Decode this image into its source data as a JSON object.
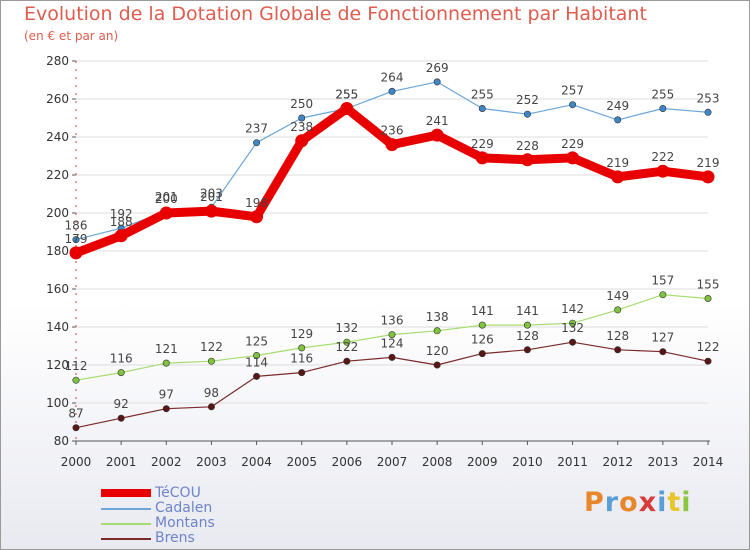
{
  "title": "Evolution de la Dotation Globale de Fonctionnement par Habitant",
  "subtitle": "(en € et par an)",
  "logo_text": "Proxiti",
  "colors": {
    "title": "#df5c4e",
    "axis": "#555555",
    "gridline": "#dddddd",
    "value_label": "#444444",
    "legend_text": "#6e84c8"
  },
  "chart_data": {
    "type": "line",
    "title": "Evolution de la Dotation Globale de Fonctionnement par Habitant",
    "subtitle": "(en € et par an)",
    "xlabel": "",
    "ylabel": "",
    "x": [
      "2000",
      "2001",
      "2002",
      "2003",
      "2004",
      "2005",
      "2006",
      "2007",
      "2008",
      "2009",
      "2010",
      "2011",
      "2012",
      "2013",
      "2014"
    ],
    "yticks": [
      "80",
      "100",
      "120",
      "140",
      "160",
      "180",
      "200",
      "220",
      "240",
      "260",
      "280"
    ],
    "ylim": [
      80,
      280
    ],
    "grid": "horizontal",
    "legend_position": "bottom-left",
    "series": [
      {
        "name": "TéCOU",
        "color": "#e80000",
        "marker": "#e80000",
        "values": [
          179,
          188,
          200,
          201,
          198,
          238,
          255,
          236,
          241,
          229,
          228,
          229,
          219,
          222,
          219
        ]
      },
      {
        "name": "Cadalen",
        "color": "#6aa6d8",
        "marker": "#3f86c8",
        "values": [
          186,
          192,
          201,
          203,
          237,
          250,
          255,
          264,
          269,
          255,
          252,
          257,
          249,
          255,
          253
        ]
      },
      {
        "name": "Montans",
        "color": "#a6dc70",
        "marker": "#7fc33f",
        "values": [
          112,
          116,
          121,
          122,
          125,
          129,
          132,
          136,
          138,
          141,
          141,
          142,
          149,
          157,
          155
        ]
      },
      {
        "name": "Brens",
        "color": "#7a2a2a",
        "marker": "#5a1515",
        "values": [
          87,
          92,
          97,
          98,
          114,
          116,
          122,
          124,
          120,
          126,
          128,
          132,
          128,
          127,
          122
        ]
      }
    ]
  }
}
